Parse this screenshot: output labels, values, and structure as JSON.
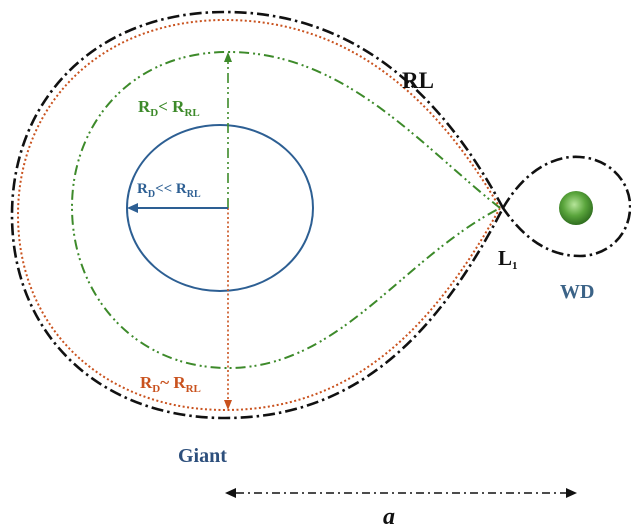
{
  "labels": {
    "rl": "RL",
    "l1": "L",
    "l1_sub": "1",
    "wd": "WD",
    "giant": "Giant",
    "separation": "a",
    "green": {
      "r": "R",
      "sub1": "D",
      "rel": "< R",
      "sub2": "RL"
    },
    "blue": {
      "r": "R",
      "sub1": "D",
      "rel": "<< R",
      "sub2": "RL"
    },
    "orange": {
      "r": "R",
      "sub1": "D",
      "rel": "~ R",
      "sub2": "RL"
    }
  },
  "colors": {
    "roche_lobe": "#111111",
    "green_disk": "#3d8a2a",
    "blue_disk": "#2d5f93",
    "orange_disk": "#c9521e",
    "wd_text": "#3b6387",
    "giant_text": "#2d4f7c",
    "wd_star": "#5aa53c"
  }
}
